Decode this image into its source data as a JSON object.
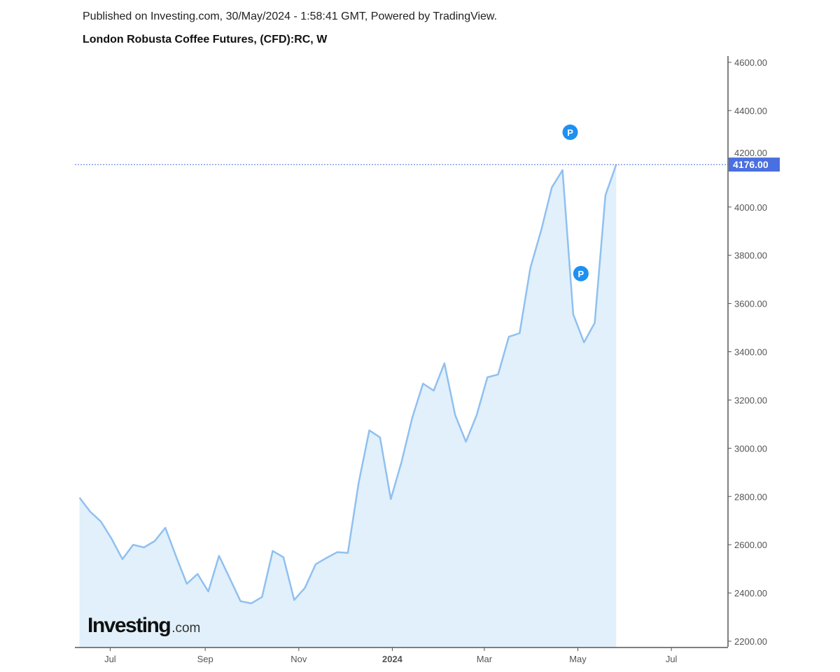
{
  "header": {
    "published": "Published on Investing.com, 30/May/2024 - 1:58:41 GMT, Powered by TradingView.",
    "title": "London Robusta Coffee Futures, (CFD):RC, W"
  },
  "logo": {
    "text_main": "Investing",
    "text_suffix": ".com"
  },
  "chart_data": {
    "type": "area",
    "title": "London Robusta Coffee Futures, (CFD):RC, W",
    "xlabel": "",
    "ylabel": "",
    "x_range": [
      "2023-06-08",
      "2024-08-06"
    ],
    "ylim": [
      2180,
      4640
    ],
    "y_ticks": [
      "2200.00",
      "2400.00",
      "2600.00",
      "2800.00",
      "3000.00",
      "3200.00",
      "3400.00",
      "3600.00",
      "3800.00",
      "4000.00",
      "4200.00",
      "4400.00",
      "4600.00"
    ],
    "x_ticks": [
      {
        "label": "Jul",
        "date": "2023-07-01",
        "bold": false
      },
      {
        "label": "Sep",
        "date": "2023-09-01",
        "bold": false
      },
      {
        "label": "Nov",
        "date": "2023-11-01",
        "bold": false
      },
      {
        "label": "2024",
        "date": "2024-01-01",
        "bold": true
      },
      {
        "label": "Mar",
        "date": "2024-03-01",
        "bold": false
      },
      {
        "label": "May",
        "date": "2024-05-01",
        "bold": false
      },
      {
        "label": "Jul",
        "date": "2024-07-01",
        "bold": false
      }
    ],
    "last_value_label": "4176.00",
    "last_value": 4176,
    "grid": false,
    "colors": {
      "line": "#90c0f0",
      "fill": "#e1f0fa",
      "last_price": "#4a6fe0",
      "marker": "#1e90f0"
    },
    "markers": [
      {
        "label": "P",
        "date": "2024-04-26",
        "value": 4310
      },
      {
        "label": "P",
        "date": "2024-05-03",
        "value": 3724
      }
    ],
    "first_date": "2023-06-11",
    "interval": "weekly",
    "values": [
      2795,
      2737,
      2696,
      2624,
      2540,
      2600,
      2589,
      2615,
      2670,
      2551,
      2438,
      2479,
      2406,
      2554,
      2461,
      2366,
      2357,
      2383,
      2574,
      2548,
      2371,
      2421,
      2519,
      2545,
      2569,
      2566,
      2856,
      3074,
      3045,
      2789,
      2943,
      3126,
      3268,
      3239,
      3352,
      3137,
      3027,
      3137,
      3294,
      3306,
      3462,
      3477,
      3747,
      3901,
      4081,
      4153,
      3555,
      3439,
      3520,
      4049,
      4176
    ]
  }
}
